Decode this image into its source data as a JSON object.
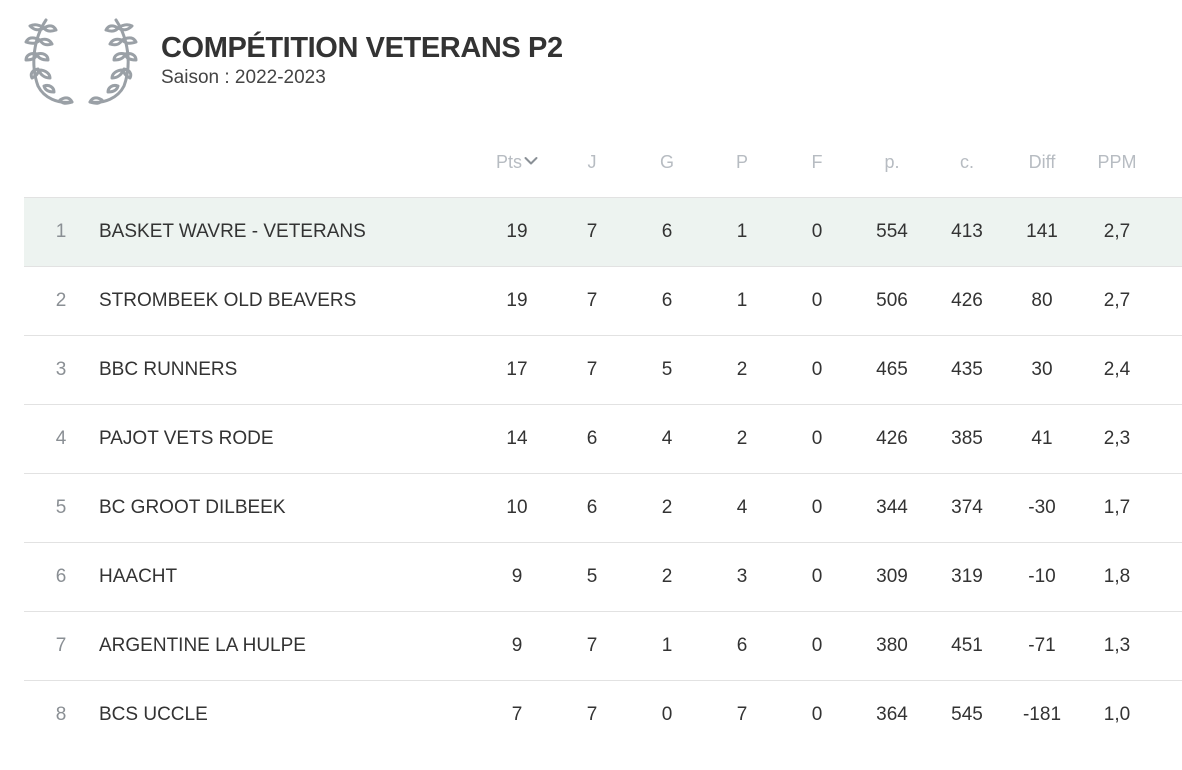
{
  "header": {
    "title": "COMPÉTITION VETERANS P2",
    "season": "Saison : 2022-2023",
    "icon": "laurel-wreath-icon",
    "icon_color": "#9aa0a6"
  },
  "table": {
    "columns": [
      "Pts",
      "J",
      "G",
      "P",
      "F",
      "p.",
      "c.",
      "Diff",
      "PPM"
    ],
    "sort_column": "Pts",
    "highlight_color": "#edf3f0",
    "rows": [
      {
        "rank": "1",
        "team": "BASKET WAVRE - VETERANS",
        "values": [
          "19",
          "7",
          "6",
          "1",
          "0",
          "554",
          "413",
          "141",
          "2,7"
        ],
        "highlight": true
      },
      {
        "rank": "2",
        "team": "STROMBEEK OLD BEAVERS",
        "values": [
          "19",
          "7",
          "6",
          "1",
          "0",
          "506",
          "426",
          "80",
          "2,7"
        ]
      },
      {
        "rank": "3",
        "team": "BBC RUNNERS",
        "values": [
          "17",
          "7",
          "5",
          "2",
          "0",
          "465",
          "435",
          "30",
          "2,4"
        ]
      },
      {
        "rank": "4",
        "team": "PAJOT VETS RODE",
        "values": [
          "14",
          "6",
          "4",
          "2",
          "0",
          "426",
          "385",
          "41",
          "2,3"
        ]
      },
      {
        "rank": "5",
        "team": "BC GROOT DILBEEK",
        "values": [
          "10",
          "6",
          "2",
          "4",
          "0",
          "344",
          "374",
          "-30",
          "1,7"
        ]
      },
      {
        "rank": "6",
        "team": "HAACHT",
        "values": [
          "9",
          "5",
          "2",
          "3",
          "0",
          "309",
          "319",
          "-10",
          "1,8"
        ]
      },
      {
        "rank": "7",
        "team": "ARGENTINE LA HULPE",
        "values": [
          "9",
          "7",
          "1",
          "6",
          "0",
          "380",
          "451",
          "-71",
          "1,3"
        ]
      },
      {
        "rank": "8",
        "team": "BCS UCCLE",
        "values": [
          "7",
          "7",
          "0",
          "7",
          "0",
          "364",
          "545",
          "-181",
          "1,0"
        ]
      }
    ]
  }
}
